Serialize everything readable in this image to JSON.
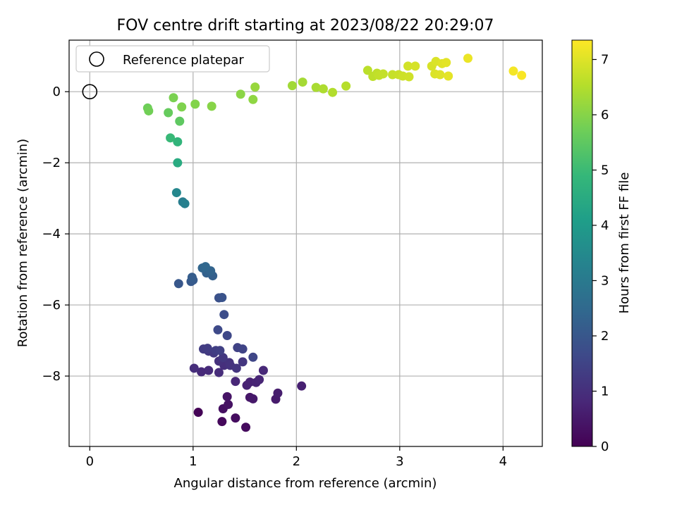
{
  "chart_data": {
    "type": "scatter",
    "title": "FOV centre drift starting at 2023/08/22 20:29:07",
    "xlabel": "Angular distance from reference (arcmin)",
    "ylabel": "Rotation from reference (arcmin)",
    "xlim": [
      -0.2,
      4.38
    ],
    "ylim": [
      -9.98,
      1.45
    ],
    "xticks": [
      0,
      1,
      2,
      3,
      4
    ],
    "yticks": [
      -8,
      -6,
      -4,
      -2,
      0
    ],
    "grid": true,
    "legend": {
      "position": "upper-left",
      "entries": [
        "Reference platepar"
      ]
    },
    "reference_point": {
      "x": 0,
      "y": 0,
      "label": "Reference platepar"
    },
    "colorbar": {
      "label": "Hours from first FF file",
      "min": 0,
      "max": 7.35,
      "ticks": [
        0,
        1,
        2,
        3,
        4,
        5,
        6,
        7
      ],
      "colormap": "viridis"
    },
    "points": [
      {
        "x": 1.05,
        "y": -9.02,
        "c": 0.05
      },
      {
        "x": 1.28,
        "y": -9.28,
        "c": 0.15
      },
      {
        "x": 1.51,
        "y": -9.44,
        "c": 0.2
      },
      {
        "x": 1.41,
        "y": -9.18,
        "c": 0.25
      },
      {
        "x": 1.29,
        "y": -8.92,
        "c": 0.3
      },
      {
        "x": 1.34,
        "y": -8.8,
        "c": 0.35
      },
      {
        "x": 1.33,
        "y": -8.58,
        "c": 0.4
      },
      {
        "x": 1.55,
        "y": -8.6,
        "c": 0.45
      },
      {
        "x": 1.58,
        "y": -8.64,
        "c": 0.5
      },
      {
        "x": 1.8,
        "y": -8.65,
        "c": 0.55
      },
      {
        "x": 1.82,
        "y": -8.48,
        "c": 0.6
      },
      {
        "x": 2.05,
        "y": -8.28,
        "c": 0.65
      },
      {
        "x": 1.52,
        "y": -8.26,
        "c": 0.7
      },
      {
        "x": 1.55,
        "y": -8.17,
        "c": 0.72
      },
      {
        "x": 1.61,
        "y": -8.18,
        "c": 0.75
      },
      {
        "x": 1.64,
        "y": -8.1,
        "c": 0.78
      },
      {
        "x": 1.41,
        "y": -8.15,
        "c": 0.8
      },
      {
        "x": 1.68,
        "y": -7.84,
        "c": 0.83
      },
      {
        "x": 1.08,
        "y": -7.88,
        "c": 0.86
      },
      {
        "x": 1.15,
        "y": -7.84,
        "c": 0.9
      },
      {
        "x": 1.25,
        "y": -7.9,
        "c": 0.93
      },
      {
        "x": 1.01,
        "y": -7.78,
        "c": 0.96
      },
      {
        "x": 1.3,
        "y": -7.7,
        "c": 1.0
      },
      {
        "x": 1.25,
        "y": -7.58,
        "c": 1.03
      },
      {
        "x": 1.35,
        "y": -7.62,
        "c": 1.06
      },
      {
        "x": 1.36,
        "y": -7.7,
        "c": 1.1
      },
      {
        "x": 1.42,
        "y": -7.78,
        "c": 1.13
      },
      {
        "x": 1.48,
        "y": -7.6,
        "c": 1.16
      },
      {
        "x": 1.29,
        "y": -7.48,
        "c": 1.2
      },
      {
        "x": 1.2,
        "y": -7.35,
        "c": 1.23
      },
      {
        "x": 1.15,
        "y": -7.3,
        "c": 1.26
      },
      {
        "x": 1.1,
        "y": -7.24,
        "c": 1.3
      },
      {
        "x": 1.14,
        "y": -7.22,
        "c": 1.33
      },
      {
        "x": 1.22,
        "y": -7.28,
        "c": 1.36
      },
      {
        "x": 1.26,
        "y": -7.28,
        "c": 1.4
      },
      {
        "x": 1.43,
        "y": -7.2,
        "c": 1.45
      },
      {
        "x": 1.48,
        "y": -7.24,
        "c": 1.5
      },
      {
        "x": 1.58,
        "y": -7.47,
        "c": 1.55
      },
      {
        "x": 1.33,
        "y": -6.86,
        "c": 1.6
      },
      {
        "x": 1.24,
        "y": -6.7,
        "c": 1.65
      },
      {
        "x": 1.3,
        "y": -6.27,
        "c": 1.75
      },
      {
        "x": 1.25,
        "y": -5.8,
        "c": 1.85
      },
      {
        "x": 1.28,
        "y": -5.79,
        "c": 1.9
      },
      {
        "x": 0.86,
        "y": -5.4,
        "c": 2.0
      },
      {
        "x": 0.98,
        "y": -5.34,
        "c": 2.05
      },
      {
        "x": 1.0,
        "y": -5.3,
        "c": 2.1
      },
      {
        "x": 0.99,
        "y": -5.22,
        "c": 2.15
      },
      {
        "x": 1.19,
        "y": -5.18,
        "c": 2.2
      },
      {
        "x": 1.13,
        "y": -5.1,
        "c": 2.25
      },
      {
        "x": 1.15,
        "y": -5.08,
        "c": 2.3
      },
      {
        "x": 1.17,
        "y": -5.04,
        "c": 2.35
      },
      {
        "x": 1.09,
        "y": -4.96,
        "c": 2.4
      },
      {
        "x": 1.12,
        "y": -4.92,
        "c": 2.45
      },
      {
        "x": 0.9,
        "y": -3.1,
        "c": 3.1
      },
      {
        "x": 0.92,
        "y": -3.15,
        "c": 3.2
      },
      {
        "x": 0.84,
        "y": -2.84,
        "c": 3.4
      },
      {
        "x": 0.85,
        "y": -2.0,
        "c": 4.5
      },
      {
        "x": 0.85,
        "y": -1.41,
        "c": 4.8
      },
      {
        "x": 0.78,
        "y": -1.3,
        "c": 4.95
      },
      {
        "x": 0.87,
        "y": -0.83,
        "c": 5.5
      },
      {
        "x": 0.76,
        "y": -0.59,
        "c": 5.6
      },
      {
        "x": 0.56,
        "y": -0.46,
        "c": 5.7
      },
      {
        "x": 0.57,
        "y": -0.54,
        "c": 5.75
      },
      {
        "x": 0.81,
        "y": -0.17,
        "c": 5.85
      },
      {
        "x": 0.89,
        "y": -0.43,
        "c": 5.9
      },
      {
        "x": 1.02,
        "y": -0.35,
        "c": 5.95
      },
      {
        "x": 1.18,
        "y": -0.41,
        "c": 6.0
      },
      {
        "x": 1.46,
        "y": -0.07,
        "c": 6.05
      },
      {
        "x": 1.58,
        "y": -0.22,
        "c": 6.1
      },
      {
        "x": 1.6,
        "y": 0.13,
        "c": 6.2
      },
      {
        "x": 1.96,
        "y": 0.17,
        "c": 6.3
      },
      {
        "x": 2.06,
        "y": 0.27,
        "c": 6.35
      },
      {
        "x": 2.19,
        "y": 0.12,
        "c": 6.4
      },
      {
        "x": 2.26,
        "y": 0.08,
        "c": 6.45
      },
      {
        "x": 2.35,
        "y": -0.02,
        "c": 6.5
      },
      {
        "x": 2.48,
        "y": 0.16,
        "c": 6.55
      },
      {
        "x": 2.69,
        "y": 0.6,
        "c": 6.6
      },
      {
        "x": 2.74,
        "y": 0.43,
        "c": 6.62
      },
      {
        "x": 2.78,
        "y": 0.52,
        "c": 6.65
      },
      {
        "x": 2.8,
        "y": 0.46,
        "c": 6.68
      },
      {
        "x": 2.84,
        "y": 0.5,
        "c": 6.7
      },
      {
        "x": 2.93,
        "y": 0.48,
        "c": 6.73
      },
      {
        "x": 2.99,
        "y": 0.48,
        "c": 6.76
      },
      {
        "x": 3.03,
        "y": 0.44,
        "c": 6.8
      },
      {
        "x": 3.09,
        "y": 0.42,
        "c": 6.83
      },
      {
        "x": 3.08,
        "y": 0.72,
        "c": 6.86
      },
      {
        "x": 3.15,
        "y": 0.72,
        "c": 6.9
      },
      {
        "x": 3.31,
        "y": 0.72,
        "c": 6.92
      },
      {
        "x": 3.35,
        "y": 0.85,
        "c": 6.95
      },
      {
        "x": 3.34,
        "y": 0.5,
        "c": 6.97
      },
      {
        "x": 3.39,
        "y": 0.48,
        "c": 7.0
      },
      {
        "x": 3.41,
        "y": 0.79,
        "c": 7.02
      },
      {
        "x": 3.45,
        "y": 0.82,
        "c": 7.05
      },
      {
        "x": 3.47,
        "y": 0.44,
        "c": 7.07
      },
      {
        "x": 3.66,
        "y": 0.94,
        "c": 7.15
      },
      {
        "x": 4.1,
        "y": 0.58,
        "c": 7.25
      },
      {
        "x": 4.18,
        "y": 0.46,
        "c": 7.3
      }
    ]
  }
}
